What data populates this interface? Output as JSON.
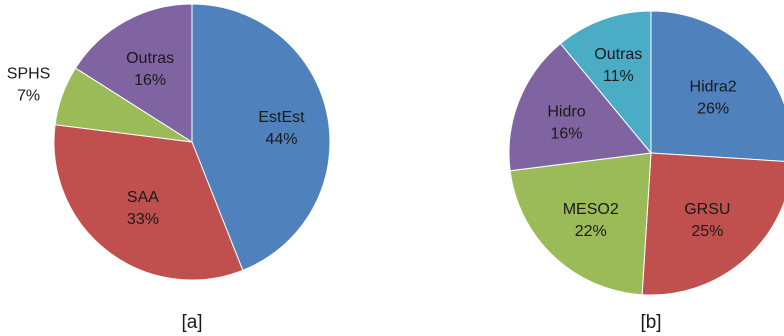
{
  "chart_data": [
    {
      "type": "pie",
      "caption": "[a]",
      "slices": [
        {
          "label": "EstEst",
          "value": 44,
          "display": "44%",
          "color": "#4F81BD"
        },
        {
          "label": "SAA",
          "value": 33,
          "display": "33%",
          "color": "#C0504D"
        },
        {
          "label": "SPHS",
          "value": 7,
          "display": "7%",
          "color": "#9BBB59"
        },
        {
          "label": "Outras",
          "value": 16,
          "display": "16%",
          "color": "#8064A2"
        }
      ]
    },
    {
      "type": "pie",
      "caption": "[b]",
      "slices": [
        {
          "label": "Hidra2",
          "value": 26,
          "display": "26%",
          "color": "#4F81BD"
        },
        {
          "label": "GRSU",
          "value": 25,
          "display": "25%",
          "color": "#C0504D"
        },
        {
          "label": "MESO2",
          "value": 22,
          "display": "22%",
          "color": "#9BBB59"
        },
        {
          "label": "Hidro",
          "value": 16,
          "display": "16%",
          "color": "#8064A2"
        },
        {
          "label": "Outras",
          "value": 11,
          "display": "11%",
          "color": "#4BACC6"
        }
      ]
    }
  ]
}
